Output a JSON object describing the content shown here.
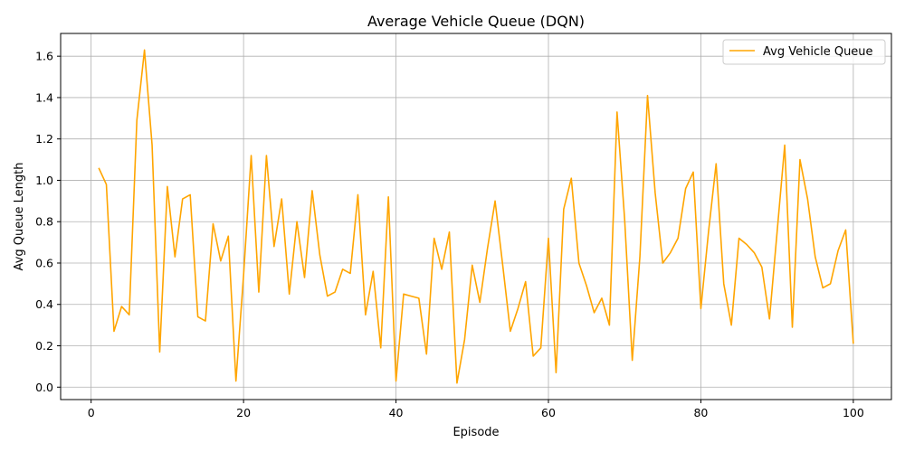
{
  "chart_data": {
    "type": "line",
    "title": "Average Vehicle Queue (DQN)",
    "xlabel": "Episode",
    "ylabel": "Avg Queue Length",
    "xlim": [
      -4,
      105
    ],
    "ylim": [
      -0.06,
      1.71
    ],
    "xticks": [
      0,
      20,
      40,
      60,
      80,
      100
    ],
    "yticks": [
      0.0,
      0.2,
      0.4,
      0.6,
      0.8,
      1.0,
      1.2,
      1.4,
      1.6
    ],
    "ytick_labels": [
      "0.0",
      "0.2",
      "0.4",
      "0.6",
      "0.8",
      "1.0",
      "1.2",
      "1.4",
      "1.6"
    ],
    "grid": true,
    "legend_position": "top-right",
    "series": [
      {
        "name": "Avg Vehicle Queue",
        "color": "#FFA500",
        "x": [
          1,
          2,
          3,
          4,
          5,
          6,
          7,
          8,
          9,
          10,
          11,
          12,
          13,
          14,
          15,
          16,
          17,
          18,
          19,
          20,
          21,
          22,
          23,
          24,
          25,
          26,
          27,
          28,
          29,
          30,
          31,
          32,
          33,
          34,
          35,
          36,
          37,
          38,
          39,
          40,
          41,
          42,
          43,
          44,
          45,
          46,
          47,
          48,
          49,
          50,
          51,
          52,
          53,
          54,
          55,
          56,
          57,
          58,
          59,
          60,
          61,
          62,
          63,
          64,
          65,
          66,
          67,
          68,
          69,
          70,
          71,
          72,
          73,
          74,
          75,
          76,
          77,
          78,
          79,
          80,
          81,
          82,
          83,
          84,
          85,
          86,
          87,
          88,
          89,
          90,
          91,
          92,
          93,
          94,
          95,
          96,
          97,
          98,
          99,
          100
        ],
        "y": [
          1.06,
          0.98,
          0.27,
          0.39,
          0.35,
          1.29,
          1.63,
          1.17,
          0.17,
          0.97,
          0.63,
          0.91,
          0.93,
          0.34,
          0.32,
          0.79,
          0.61,
          0.73,
          0.03,
          0.54,
          1.12,
          0.46,
          1.12,
          0.68,
          0.91,
          0.45,
          0.8,
          0.53,
          0.95,
          0.64,
          0.44,
          0.46,
          0.57,
          0.55,
          0.93,
          0.35,
          0.56,
          0.19,
          0.92,
          0.03,
          0.45,
          0.44,
          0.43,
          0.16,
          0.72,
          0.57,
          0.75,
          0.02,
          0.23,
          0.59,
          0.41,
          0.67,
          0.9,
          0.59,
          0.27,
          0.38,
          0.51,
          0.15,
          0.19,
          0.72,
          0.07,
          0.86,
          1.01,
          0.6,
          0.49,
          0.36,
          0.43,
          0.3,
          1.33,
          0.81,
          0.13,
          0.63,
          1.41,
          0.94,
          0.6,
          0.65,
          0.72,
          0.96,
          1.04,
          0.38,
          0.75,
          1.08,
          0.5,
          0.3,
          0.72,
          0.69,
          0.65,
          0.58,
          0.33,
          0.75,
          1.17,
          0.29,
          1.1,
          0.91,
          0.63,
          0.48,
          0.5,
          0.66,
          0.76,
          0.21
        ]
      }
    ]
  }
}
